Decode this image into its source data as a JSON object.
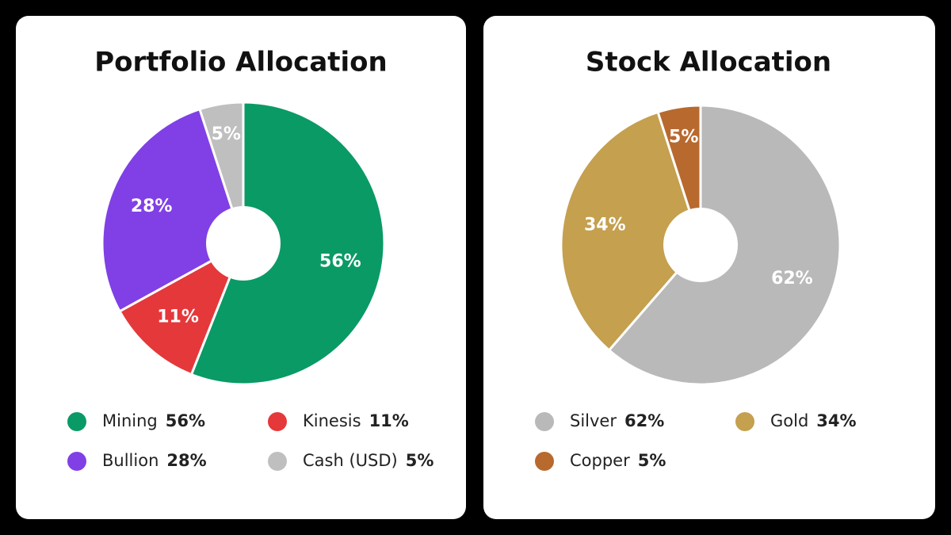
{
  "chart_data": [
    {
      "type": "pie",
      "title": "Portfolio Allocation",
      "categories": [
        "Mining",
        "Kinesis",
        "Bullion",
        "Cash (USD)"
      ],
      "values": [
        56,
        11,
        28,
        5
      ],
      "value_labels": [
        "56%",
        "11%",
        "28%",
        "5%"
      ],
      "colors": [
        "#0a9a66",
        "#e5383b",
        "#8040e6",
        "#bfbfc0"
      ]
    },
    {
      "type": "pie",
      "title": "Stock Allocation",
      "categories": [
        "Silver",
        "Gold",
        "Copper"
      ],
      "values": [
        62,
        34,
        5
      ],
      "value_labels": [
        "62%",
        "34%",
        "5%"
      ],
      "colors": [
        "#b9b9ba",
        "#c4a04f",
        "#b8692e"
      ]
    }
  ]
}
